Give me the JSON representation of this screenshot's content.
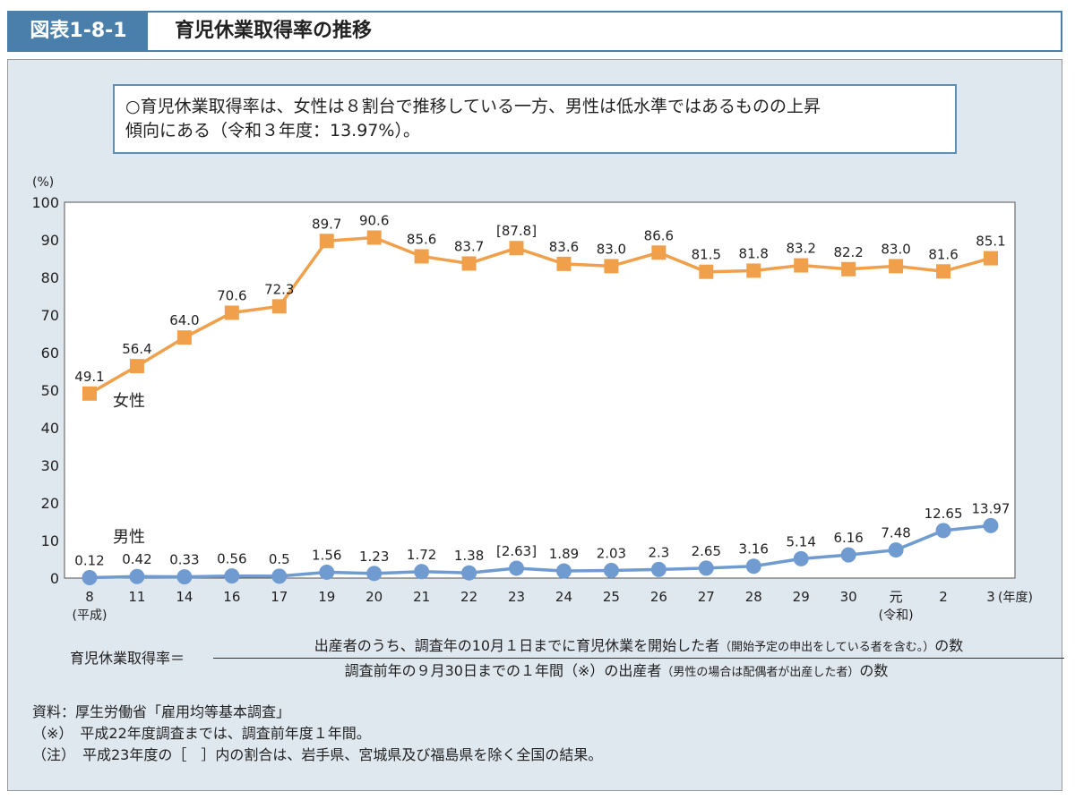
{
  "header": {
    "figure_label": "図表1-8-1",
    "title": "育児休業取得率の推移"
  },
  "summary": {
    "line1": "○育児休業取得率は、女性は８割台で推移している一方、男性は低水準ではあるものの上昇",
    "line2": "傾向にある（令和３年度：13.97%）。"
  },
  "chart_data": {
    "type": "line",
    "ylabel": "(%)",
    "ylim": [
      0,
      100
    ],
    "yticks": [
      0,
      10,
      20,
      30,
      40,
      50,
      60,
      70,
      80,
      90,
      100
    ],
    "categories": [
      "8",
      "11",
      "14",
      "16",
      "17",
      "19",
      "20",
      "21",
      "22",
      "23",
      "24",
      "25",
      "26",
      "27",
      "28",
      "29",
      "30",
      "元",
      "2",
      "3"
    ],
    "era_labels": {
      "heisei": "(平成)",
      "reiwa": "(令和)",
      "unit": "(年度)"
    },
    "series": [
      {
        "name": "女性",
        "color": "#f0a04b",
        "marker": "square",
        "values": [
          49.1,
          56.4,
          64.0,
          70.6,
          72.3,
          89.7,
          90.6,
          85.6,
          83.7,
          87.8,
          83.6,
          83.0,
          86.6,
          81.5,
          81.8,
          83.2,
          82.2,
          83.0,
          81.6,
          85.1
        ],
        "labels": [
          "49.1",
          "56.4",
          "64.0",
          "70.6",
          "72.3",
          "89.7",
          "90.6",
          "85.6",
          "83.7",
          "[87.8]",
          "83.6",
          "83.0",
          "86.6",
          "81.5",
          "81.8",
          "83.2",
          "82.2",
          "83.0",
          "81.6",
          "85.1"
        ]
      },
      {
        "name": "男性",
        "color": "#6f9bd1",
        "marker": "circle",
        "values": [
          0.12,
          0.42,
          0.33,
          0.56,
          0.5,
          1.56,
          1.23,
          1.72,
          1.38,
          2.63,
          1.89,
          2.03,
          2.3,
          2.65,
          3.16,
          5.14,
          6.16,
          7.48,
          12.65,
          13.97
        ],
        "labels": [
          "0.12",
          "0.42",
          "0.33",
          "0.56",
          "0.5",
          "1.56",
          "1.23",
          "1.72",
          "1.38",
          "[2.63]",
          "1.89",
          "2.03",
          "2.3",
          "2.65",
          "3.16",
          "5.14",
          "6.16",
          "7.48",
          "12.65",
          "13.97"
        ]
      }
    ]
  },
  "formula": {
    "lhs": "育児休業取得率＝",
    "numerator": "出産者のうち、調査年の10月１日までに育児休業を開始した者",
    "numerator_note": "（開始予定の申出をしている者を含む。）",
    "numerator_end": "の数",
    "denominator": "調査前年の９月30日までの１年間（※）の出産者",
    "denominator_note": "（男性の場合は配偶者が出産した者）",
    "denominator_end": "の数"
  },
  "notes": [
    "資料：厚生労働省「雇用均等基本調査」",
    "（※）　平成22年度調査までは、調査前年度１年間。",
    "（注）　平成23年度の［　］内の割合は、岩手県、宮城県及び福島県を除く全国の結果。"
  ]
}
